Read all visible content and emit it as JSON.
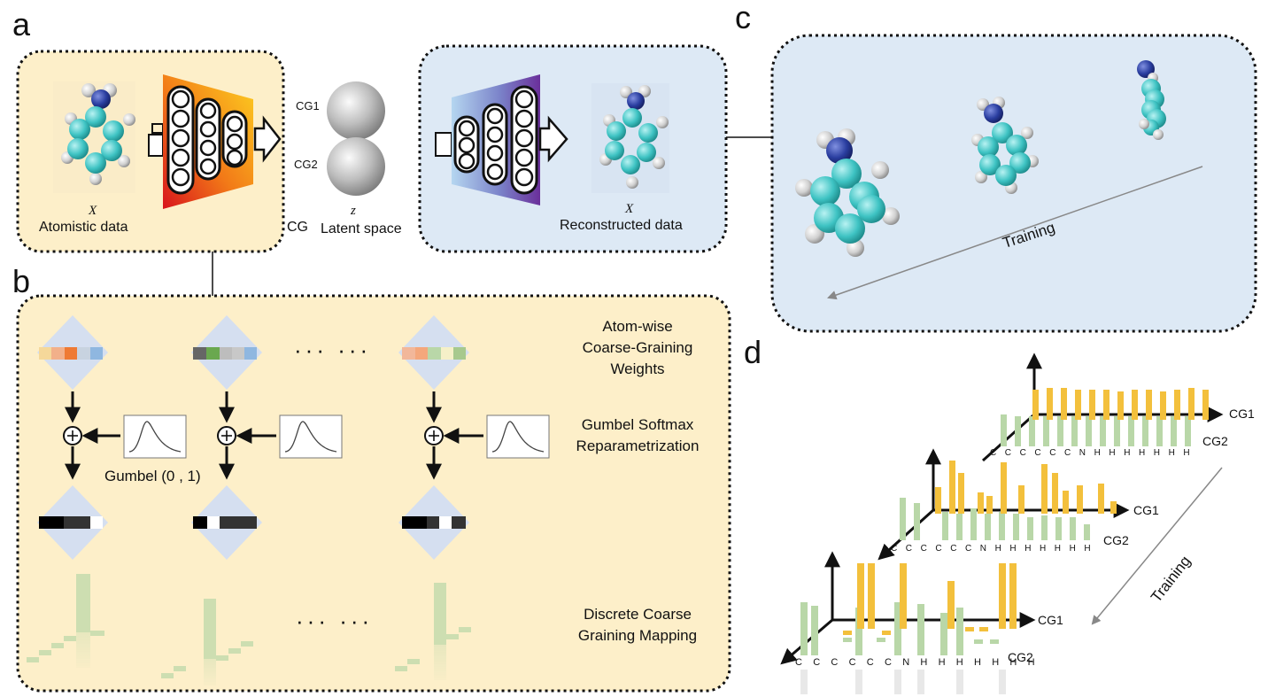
{
  "panels": {
    "a": "a",
    "b": "b",
    "c": "c",
    "d": "d"
  },
  "panel_a": {
    "input_symbol": "X",
    "input_label": "Atomistic data",
    "cg_label": "CG",
    "cg1": "CG1",
    "cg2": "CG2",
    "latent_symbol": "z",
    "latent_label": "Latent space",
    "output_symbol": "X",
    "output_label": "Reconstructed data"
  },
  "panel_b": {
    "weights_label": [
      "Atom-wise",
      "Coarse-Graining",
      "Weights"
    ],
    "gumbel_label": [
      "Gumbel Softmax",
      "Reparametrization"
    ],
    "gumbel_dist": "Gumbel (0 , 1)",
    "mapping_label": [
      "Discrete Coarse",
      "Graining Mapping"
    ],
    "ellipsis": "···  ···"
  },
  "panel_c": {
    "training_label": "Training"
  },
  "panel_d": {
    "training_label": "Training",
    "cg1": "CG1",
    "cg2": "CG2",
    "atoms": "C C C C C C N H H H H H H H"
  },
  "colors": {
    "panel_yellow": "#fdefc9",
    "panel_blue": "#dde9f5",
    "carbon": "#3ec3c3",
    "nitrogen": "#2a3ea0",
    "hydrogen": "#d8d8d8",
    "bar_yellow": "#f3c03c",
    "bar_green": "#b9d7a8"
  }
}
